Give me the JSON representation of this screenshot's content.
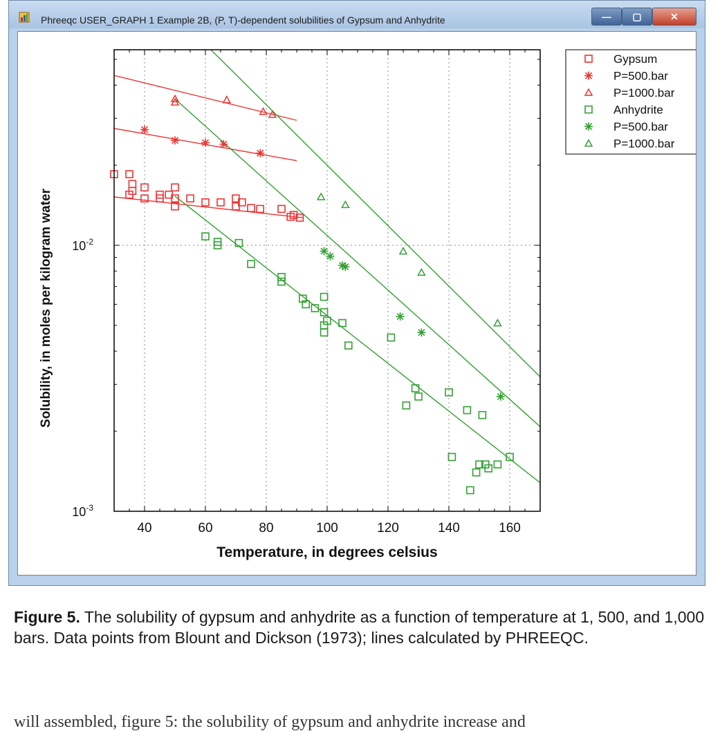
{
  "window": {
    "title": "Phreeqc USER_GRAPH 1 Example 2B, (P, T)-dependent solubilities of Gypsum and Anhydrite",
    "app_icon": "phreeqc-app-icon",
    "buttons": {
      "minimize": "minimize-icon",
      "maximize": "maximize-icon",
      "close": "close-icon"
    },
    "minimize_glyph": "—",
    "maximize_glyph": "▢",
    "close_glyph": "✕"
  },
  "colors": {
    "gypsum": "#ee3333",
    "anhydrite": "#33a033",
    "grid": "#888888"
  },
  "chart_data": {
    "type": "scatter",
    "title": "",
    "xlabel": "Temperature, in degrees celsius",
    "ylabel": "Solubility, in moles per kilogram water",
    "xlim": [
      30,
      170
    ],
    "ylim": [
      0.001,
      0.1
    ],
    "yscale": "log",
    "xticks": [
      40,
      60,
      80,
      100,
      120,
      140,
      160
    ],
    "ytick_labels": [
      {
        "value": 0.01,
        "base": "10",
        "exp": "-2"
      },
      {
        "value": 0.001,
        "base": "10",
        "exp": "-3"
      }
    ],
    "grid": true,
    "legend_position": "top-right",
    "series": [
      {
        "name": "Gypsum",
        "marker": "square",
        "color": "#ee3333",
        "points": [
          [
            30,
            0.0185
          ],
          [
            35,
            0.0185
          ],
          [
            36,
            0.017
          ],
          [
            36,
            0.016
          ],
          [
            35,
            0.0155
          ],
          [
            40,
            0.015
          ],
          [
            40,
            0.0165
          ],
          [
            45,
            0.015
          ],
          [
            45,
            0.0155
          ],
          [
            48,
            0.0155
          ],
          [
            50,
            0.014
          ],
          [
            50,
            0.015
          ],
          [
            50,
            0.0165
          ],
          [
            55,
            0.015
          ],
          [
            60,
            0.0145
          ],
          [
            65,
            0.0145
          ],
          [
            70,
            0.015
          ],
          [
            70,
            0.014
          ],
          [
            72,
            0.0145
          ],
          [
            75,
            0.0138
          ],
          [
            78,
            0.0137
          ],
          [
            85,
            0.0137
          ],
          [
            88,
            0.0128
          ],
          [
            89,
            0.013
          ],
          [
            91,
            0.0127
          ]
        ]
      },
      {
        "name": "P=500.bar",
        "marker": "asterisk",
        "color": "#ee3333",
        "points": [
          [
            40,
            0.0272
          ],
          [
            50,
            0.0248
          ],
          [
            60,
            0.0243
          ],
          [
            66,
            0.024
          ],
          [
            78,
            0.0222
          ]
        ]
      },
      {
        "name": "P=1000.bar",
        "marker": "triangle",
        "color": "#ee3333",
        "points": [
          [
            50,
            0.0345
          ],
          [
            50,
            0.0355
          ],
          [
            67,
            0.0352
          ],
          [
            79,
            0.0318
          ],
          [
            82,
            0.031
          ]
        ]
      },
      {
        "name": "Anhydrite",
        "marker": "square",
        "color": "#33a033",
        "points": [
          [
            60,
            0.0108
          ],
          [
            64,
            0.0103
          ],
          [
            64,
            0.01
          ],
          [
            71,
            0.0102
          ],
          [
            75,
            0.0085
          ],
          [
            85,
            0.0076
          ],
          [
            85,
            0.0073
          ],
          [
            92,
            0.0063
          ],
          [
            93,
            0.006
          ],
          [
            96,
            0.0058
          ],
          [
            99,
            0.0064
          ],
          [
            99,
            0.0056
          ],
          [
            99,
            0.005
          ],
          [
            100,
            0.0052
          ],
          [
            99,
            0.0047
          ],
          [
            105,
            0.0051
          ],
          [
            107,
            0.0042
          ],
          [
            121,
            0.0045
          ],
          [
            126,
            0.0025
          ],
          [
            129,
            0.0029
          ],
          [
            130,
            0.0027
          ],
          [
            140,
            0.0028
          ],
          [
            141,
            0.0016
          ],
          [
            146,
            0.0024
          ],
          [
            147,
            0.0012
          ],
          [
            149,
            0.0014
          ],
          [
            150,
            0.0015
          ],
          [
            151,
            0.0023
          ],
          [
            152,
            0.0015
          ],
          [
            153,
            0.00145
          ],
          [
            156,
            0.0015
          ],
          [
            160,
            0.0016
          ]
        ]
      },
      {
        "name": "P=500.bar",
        "marker": "asterisk",
        "color": "#33a033",
        "points": [
          [
            99,
            0.0095
          ],
          [
            101,
            0.0091
          ],
          [
            105,
            0.0084
          ],
          [
            106,
            0.0083
          ],
          [
            124,
            0.0054
          ],
          [
            131,
            0.0047
          ],
          [
            157,
            0.0027
          ]
        ]
      },
      {
        "name": "P=1000.bar",
        "marker": "triangle",
        "color": "#33a033",
        "points": [
          [
            98,
            0.0152
          ],
          [
            106,
            0.0142
          ],
          [
            125,
            0.0095
          ],
          [
            131,
            0.0079
          ],
          [
            156,
            0.0051
          ]
        ]
      }
    ],
    "lines": [
      {
        "color": "#ee3333",
        "points": [
          [
            30,
            0.0435
          ],
          [
            90,
            0.0295
          ]
        ]
      },
      {
        "color": "#ee3333",
        "points": [
          [
            30,
            0.0275
          ],
          [
            90,
            0.0208
          ]
        ]
      },
      {
        "color": "#ee3333",
        "points": [
          [
            30,
            0.0152
          ],
          [
            92,
            0.0127
          ]
        ]
      },
      {
        "color": "#33a033",
        "points": [
          [
            50,
            0.074
          ],
          [
            170,
            0.0032
          ]
        ]
      },
      {
        "color": "#33a033",
        "points": [
          [
            50,
            0.0355
          ],
          [
            170,
            0.00208
          ]
        ]
      },
      {
        "color": "#33a033",
        "points": [
          [
            50,
            0.0153
          ],
          [
            170,
            0.00128
          ]
        ]
      }
    ]
  },
  "caption": {
    "label": "Figure 5.",
    "text": " The solubility of gypsum and anhydrite as a function of temperature at 1, 500, and 1,000 bars. Data points from Blount and Dickson (1973); lines calculated by PHREEQC."
  },
  "cutoff_text": "will assembled, figure 5: the solubility of gypsum and anhydrite increase and"
}
